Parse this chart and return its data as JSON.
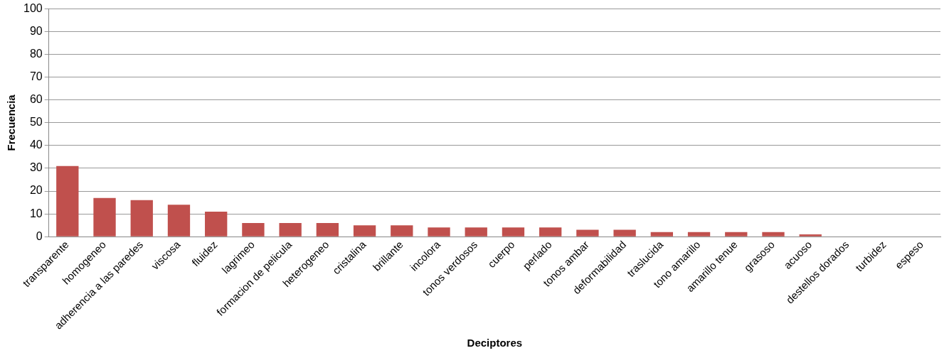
{
  "chart_data": {
    "type": "bar",
    "xlabel": "Deciptores",
    "ylabel": "Frecuencia",
    "categories": [
      "transparente",
      "homogeneo",
      "adherencia a las paredes",
      "viscosa",
      "fluidez",
      "lagrimeo",
      "formacion de pelicula",
      "heterogeneo",
      "cristalina",
      "brillante",
      "incolora",
      "tonos verdosos",
      "cuerpo",
      "perlado",
      "tonos ambar",
      "deformabilidad",
      "traslucida",
      "tono amarillo",
      "amarillo tenue",
      "grasoso",
      "acuoso",
      "destellos dorados",
      "turbidez",
      "espeso"
    ],
    "values": [
      31,
      17,
      16,
      14,
      11,
      6,
      6,
      6,
      5,
      5,
      4,
      4,
      4,
      4,
      3,
      3,
      2,
      2,
      2,
      2,
      1,
      0,
      0,
      0
    ],
    "color": "#c0504d",
    "ylim": [
      0,
      100
    ],
    "yticks": [
      0,
      10,
      20,
      30,
      40,
      50,
      60,
      70,
      80,
      90,
      100
    ],
    "grid": "y"
  }
}
